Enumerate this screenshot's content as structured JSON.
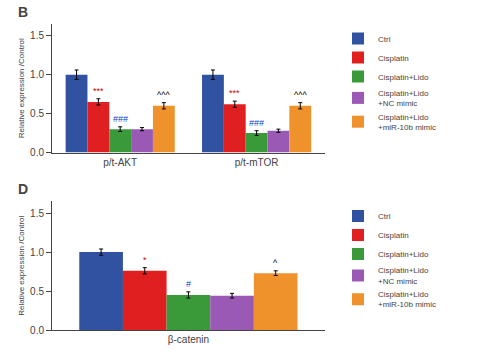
{
  "chart_data": [
    {
      "type": "bar",
      "title": "B",
      "categories": [
        "p/t-AKT",
        "p/t-mTOR"
      ],
      "series": [
        {
          "name": "Ctrl",
          "color": "#3152a0",
          "values": [
            1.0,
            1.0
          ],
          "errors": [
            0.06,
            0.06
          ]
        },
        {
          "name": "Cisplatin",
          "color": "#e02020",
          "values": [
            0.65,
            0.62
          ],
          "errors": [
            0.04,
            0.04
          ],
          "annotations": [
            "***",
            "***"
          ],
          "annotation_color": "#cc0000"
        },
        {
          "name": "Cisplatin+Lido",
          "color": "#3a9a3a",
          "values": [
            0.3,
            0.25
          ],
          "errors": [
            0.03,
            0.03
          ],
          "annotations": [
            "###",
            "###"
          ],
          "annotation_color": "#0044cc"
        },
        {
          "name": "Cisplatin+Lido\n+NC mimic",
          "color": "#9b59b6",
          "values": [
            0.3,
            0.28
          ],
          "errors": [
            0.02,
            0.02
          ]
        },
        {
          "name": "Cisplatin+Lido\n+miR-10b mimic",
          "color": "#f0922b",
          "values": [
            0.6,
            0.6
          ],
          "errors": [
            0.04,
            0.04
          ],
          "annotations": [
            "^^^",
            "^^^"
          ],
          "annotation_color": "#000000"
        }
      ],
      "ylabel": "Relative expression /Control",
      "ylim": [
        0.0,
        1.65
      ],
      "yticks": [
        {
          "value": 0.0,
          "label": "0.0"
        },
        0.5,
        {
          "value": 1.0,
          "label": "1.0"
        },
        1.5
      ],
      "grid": false,
      "legend": "upper right"
    },
    {
      "type": "bar",
      "title": "D",
      "categories": [
        "β-catenin"
      ],
      "series": [
        {
          "name": "Ctrl",
          "color": "#3152a0",
          "values": [
            1.0
          ],
          "errors": [
            0.04
          ]
        },
        {
          "name": "Cisplatin",
          "color": "#e02020",
          "values": [
            0.76
          ],
          "errors": [
            0.04
          ],
          "annotations": [
            "*"
          ],
          "annotation_color": "#cc0000"
        },
        {
          "name": "Cisplatin+Lido",
          "color": "#3a9a3a",
          "values": [
            0.45
          ],
          "errors": [
            0.04
          ],
          "annotations": [
            "#"
          ],
          "annotation_color": "#0044cc"
        },
        {
          "name": "Cisplatin+Lido\n+NC mimic",
          "color": "#9b59b6",
          "values": [
            0.44
          ],
          "errors": [
            0.03
          ]
        },
        {
          "name": "Cisplatin+Lido\n+miR-10b mimic",
          "color": "#f0922b",
          "values": [
            0.73
          ],
          "errors": [
            0.03
          ],
          "annotations": [
            "^"
          ],
          "annotation_color": "#000000"
        }
      ],
      "ylabel": "Relative expression /Control",
      "ylim": [
        0.0,
        1.65
      ],
      "yticks": [
        {
          "value": 0.0,
          "label": "0.0"
        },
        0.5,
        {
          "value": 1.0,
          "label": "1.0"
        },
        1.5
      ],
      "grid": false,
      "legend": "upper right"
    }
  ]
}
